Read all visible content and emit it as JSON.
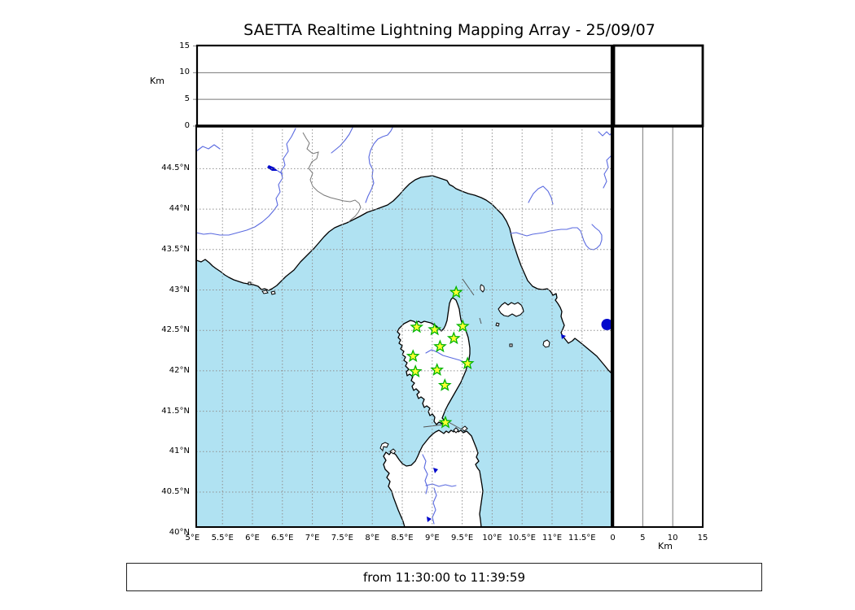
{
  "title": "SAETTA Realtime Lightning Mapping Array - 25/09/07",
  "footer": {
    "time_range": "from 11:30:00 to 11:39:59"
  },
  "axes": {
    "altitude_unit_left": "Km",
    "altitude_unit_bottom": "Km",
    "altitude_ticks": [
      {
        "value": 0,
        "label": "0"
      },
      {
        "value": 5,
        "label": "5"
      },
      {
        "value": 10,
        "label": "10"
      },
      {
        "value": 15,
        "label": "15"
      }
    ],
    "longitude_ticks": [
      {
        "value": 5,
        "label": "5°E"
      },
      {
        "value": 5.5,
        "label": "5.5°E"
      },
      {
        "value": 6,
        "label": "6°E"
      },
      {
        "value": 6.5,
        "label": "6.5°E"
      },
      {
        "value": 7,
        "label": "7°E"
      },
      {
        "value": 7.5,
        "label": "7.5°E"
      },
      {
        "value": 8,
        "label": "8°E"
      },
      {
        "value": 8.5,
        "label": "8.5°E"
      },
      {
        "value": 9,
        "label": "9°E"
      },
      {
        "value": 9.5,
        "label": "9.5°E"
      },
      {
        "value": 10,
        "label": "10°E"
      },
      {
        "value": 10.5,
        "label": "10.5°E"
      },
      {
        "value": 11,
        "label": "11°E"
      },
      {
        "value": 11.5,
        "label": "11.5°E"
      }
    ],
    "latitude_ticks": [
      {
        "value": 40,
        "label": "40°N"
      },
      {
        "value": 40.5,
        "label": "40.5°N"
      },
      {
        "value": 41,
        "label": "41°N"
      },
      {
        "value": 41.5,
        "label": "41.5°N"
      },
      {
        "value": 42,
        "label": "42°N"
      },
      {
        "value": 42.5,
        "label": "42.5°N"
      },
      {
        "value": 43,
        "label": "43°N"
      },
      {
        "value": 43.5,
        "label": "43.5°N"
      },
      {
        "value": 44,
        "label": "44°N"
      },
      {
        "value": 44.5,
        "label": "44.5°N"
      }
    ]
  },
  "colors": {
    "sea": "#b0e2f2",
    "land": "#ffffff",
    "coast": "#000000",
    "river": "#5a6ae0",
    "lake": "#0008cc",
    "border": "#777777",
    "grid_dash": "#909090",
    "panel_grid": "#777777",
    "station_fill": "#ffff33",
    "station_stroke": "#00b400"
  },
  "chart_data": {
    "type": "scatter",
    "title": "SAETTA Realtime Lightning Mapping Array - 25/09/07",
    "time_window": "from 11:30:00 to 11:39:59",
    "panels": {
      "altitude_longitude": {
        "ylabel": "Km",
        "ylim": [
          0,
          15
        ],
        "yticks": [
          0,
          5,
          10,
          15
        ],
        "points": []
      },
      "map": {
        "lon_range_deg_e": [
          5,
          12
        ],
        "lat_range_deg_n": [
          40,
          45
        ],
        "lon_ticks_deg_e": [
          5,
          5.5,
          6,
          6.5,
          7,
          7.5,
          8,
          8.5,
          9,
          9.5,
          10,
          10.5,
          11,
          11.5
        ],
        "lat_ticks_deg_n": [
          40,
          40.5,
          41,
          41.5,
          42,
          42.5,
          43,
          43.5,
          44,
          44.5
        ],
        "station_markers_lon_lat": [
          [
            9.4,
            42.97
          ],
          [
            8.74,
            42.54
          ],
          [
            9.04,
            42.51
          ],
          [
            9.51,
            42.55
          ],
          [
            9.36,
            42.4
          ],
          [
            9.13,
            42.3
          ],
          [
            8.68,
            42.18
          ],
          [
            9.59,
            42.09
          ],
          [
            9.08,
            42.01
          ],
          [
            8.72,
            41.99
          ],
          [
            9.21,
            41.82
          ],
          [
            9.22,
            41.36
          ]
        ],
        "lightning_points": []
      },
      "altitude_latitude": {
        "xlabel": "Km",
        "xlim": [
          0,
          15
        ],
        "xticks": [
          0,
          5,
          10,
          15
        ],
        "points": []
      }
    }
  }
}
